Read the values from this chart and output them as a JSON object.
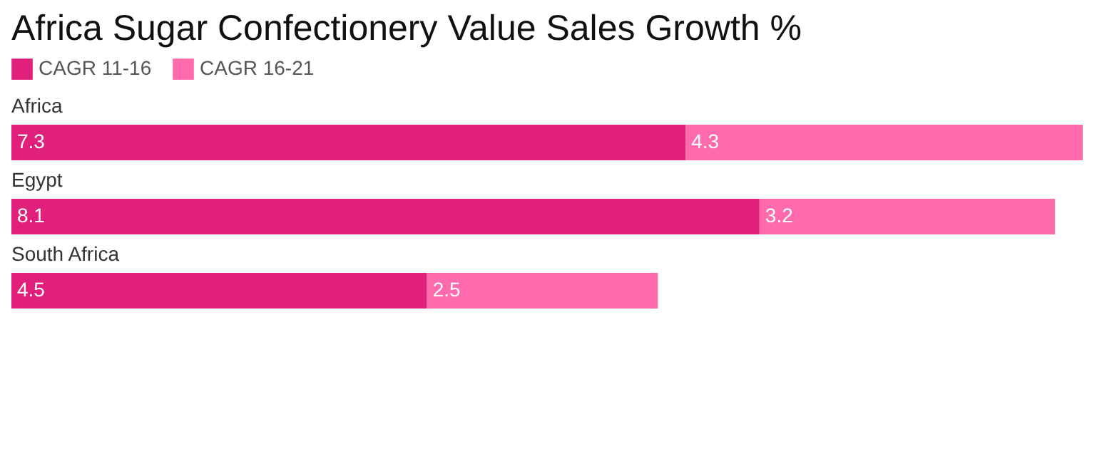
{
  "chart_data": {
    "type": "bar",
    "orientation": "horizontal",
    "stacked": true,
    "data_labels": true,
    "legend": "top left",
    "title": "Africa Sugar Confectionery Value Sales Growth %",
    "categories": [
      "Africa",
      "Egypt",
      "South Africa"
    ],
    "series": [
      {
        "name": "CAGR 11-16",
        "color": "#e0207a",
        "values": [
          7.3,
          8.1,
          4.5
        ]
      },
      {
        "name": "CAGR 16-21",
        "color": "#ff6aac",
        "values": [
          4.3,
          3.2,
          2.5
        ]
      }
    ]
  }
}
